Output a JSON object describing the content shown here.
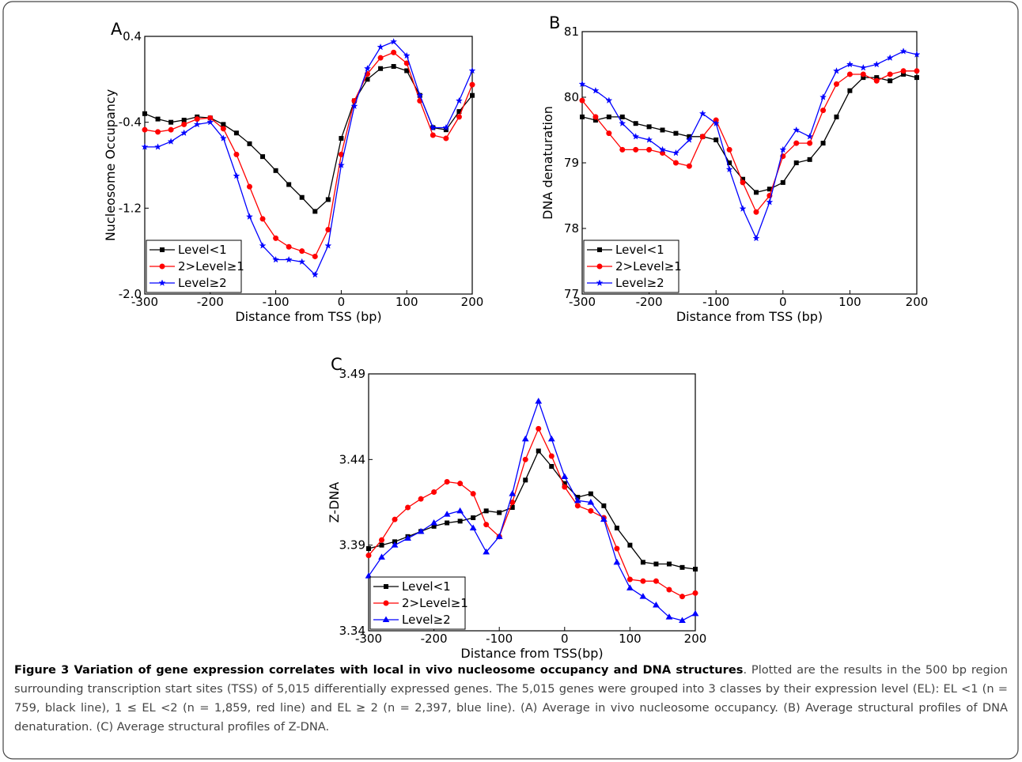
{
  "chart_data": [
    {
      "type": "line",
      "panel_label": "A",
      "xlabel": "Distance from TSS (bp)",
      "ylabel": "Nucleosome Occupancy",
      "x": [
        -300,
        -280,
        -260,
        -240,
        -220,
        -200,
        -180,
        -160,
        -140,
        -120,
        -100,
        -80,
        -60,
        -40,
        -20,
        0,
        20,
        40,
        60,
        80,
        100,
        120,
        140,
        160,
        180,
        200
      ],
      "xlim": [
        -300,
        200
      ],
      "xticks": [
        -300,
        -200,
        -100,
        0,
        100,
        200
      ],
      "ylim": [
        -2,
        0.4
      ],
      "yticks": [
        {
          "value": -2,
          "label": "-2.0"
        },
        -1.2,
        -0.4,
        0.4
      ],
      "legend": "lower left",
      "series": [
        {
          "name": "Level<1",
          "color": "#000000",
          "marker": "square",
          "values": [
            -0.32,
            -0.37,
            -0.4,
            -0.38,
            -0.35,
            -0.36,
            -0.42,
            -0.5,
            -0.6,
            -0.72,
            -0.85,
            -0.98,
            -1.1,
            -1.23,
            -1.12,
            -0.55,
            -0.2,
            0.0,
            0.1,
            0.12,
            0.08,
            -0.15,
            -0.45,
            -0.47,
            -0.3,
            -0.15
          ]
        },
        {
          "name": "2>Level≥1",
          "color": "#ff0000",
          "marker": "circle",
          "values": [
            -0.47,
            -0.49,
            -0.47,
            -0.42,
            -0.37,
            -0.36,
            -0.46,
            -0.7,
            -1.0,
            -1.3,
            -1.48,
            -1.56,
            -1.6,
            -1.65,
            -1.4,
            -0.7,
            -0.2,
            0.05,
            0.2,
            0.25,
            0.15,
            -0.2,
            -0.52,
            -0.55,
            -0.35,
            -0.05
          ]
        },
        {
          "name": "Level≥2",
          "color": "#0000ff",
          "marker": "star",
          "values": [
            -0.63,
            -0.63,
            -0.58,
            -0.5,
            -0.42,
            -0.4,
            -0.55,
            -0.9,
            -1.28,
            -1.55,
            -1.68,
            -1.68,
            -1.7,
            -1.82,
            -1.55,
            -0.8,
            -0.25,
            0.1,
            0.3,
            0.35,
            0.22,
            -0.15,
            -0.45,
            -0.45,
            -0.2,
            0.08
          ]
        }
      ]
    },
    {
      "type": "line",
      "panel_label": "B",
      "xlabel": "Distance from TSS (bp)",
      "ylabel": "DNA denaturation",
      "x": [
        -300,
        -280,
        -260,
        -240,
        -220,
        -200,
        -180,
        -160,
        -140,
        -120,
        -100,
        -80,
        -60,
        -40,
        -20,
        0,
        20,
        40,
        60,
        80,
        100,
        120,
        140,
        160,
        180,
        200
      ],
      "xlim": [
        -300,
        200
      ],
      "xticks": [
        -300,
        -200,
        -100,
        0,
        100,
        200
      ],
      "ylim": [
        77,
        81
      ],
      "yticks": [
        77,
        78,
        79,
        80,
        81
      ],
      "legend": "lower left",
      "series": [
        {
          "name": "Level<1",
          "color": "#000000",
          "marker": "square",
          "values": [
            79.7,
            79.65,
            79.7,
            79.7,
            79.6,
            79.55,
            79.5,
            79.45,
            79.4,
            79.4,
            79.35,
            79.0,
            78.75,
            78.55,
            78.6,
            78.7,
            79.0,
            79.05,
            79.3,
            79.7,
            80.1,
            80.3,
            80.3,
            80.25,
            80.35,
            80.3
          ]
        },
        {
          "name": "2>Level≥1",
          "color": "#ff0000",
          "marker": "circle",
          "values": [
            79.95,
            79.7,
            79.45,
            79.2,
            79.2,
            79.2,
            79.15,
            79.0,
            78.95,
            79.4,
            79.65,
            79.2,
            78.7,
            78.25,
            78.5,
            79.1,
            79.3,
            79.3,
            79.8,
            80.2,
            80.35,
            80.35,
            80.25,
            80.35,
            80.4,
            80.4
          ]
        },
        {
          "name": "Level≥2",
          "color": "#0000ff",
          "marker": "star",
          "values": [
            80.2,
            80.1,
            79.95,
            79.6,
            79.4,
            79.35,
            79.2,
            79.15,
            79.35,
            79.75,
            79.6,
            78.9,
            78.3,
            77.85,
            78.4,
            79.2,
            79.5,
            79.4,
            80.0,
            80.4,
            80.5,
            80.45,
            80.5,
            80.6,
            80.7,
            80.65
          ]
        }
      ]
    },
    {
      "type": "line",
      "panel_label": "C",
      "xlabel": "Distance from TSS(bp)",
      "ylabel": "Z-DNA",
      "x": [
        -300,
        -280,
        -260,
        -240,
        -220,
        -200,
        -180,
        -160,
        -140,
        -120,
        -100,
        -80,
        -60,
        -40,
        -20,
        0,
        20,
        40,
        60,
        80,
        100,
        120,
        140,
        160,
        180,
        200
      ],
      "xlim": [
        -300,
        200
      ],
      "xticks": [
        -300,
        -200,
        -100,
        0,
        100,
        200
      ],
      "ylim": [
        3.34,
        3.49
      ],
      "yticks": [
        3.34,
        3.39,
        3.44,
        3.49
      ],
      "legend": "lower left",
      "series": [
        {
          "name": "Level<1",
          "color": "#000000",
          "marker": "square",
          "values": [
            3.388,
            3.39,
            3.392,
            3.395,
            3.398,
            3.401,
            3.403,
            3.404,
            3.406,
            3.41,
            3.409,
            3.412,
            3.428,
            3.445,
            3.436,
            3.426,
            3.418,
            3.42,
            3.413,
            3.4,
            3.39,
            3.38,
            3.379,
            3.379,
            3.377,
            3.376
          ]
        },
        {
          "name": "2>Level≥1",
          "color": "#ff0000",
          "marker": "circle",
          "values": [
            3.384,
            3.393,
            3.405,
            3.412,
            3.417,
            3.421,
            3.427,
            3.426,
            3.42,
            3.402,
            3.395,
            3.415,
            3.44,
            3.458,
            3.442,
            3.424,
            3.413,
            3.41,
            3.406,
            3.388,
            3.37,
            3.369,
            3.369,
            3.364,
            3.36,
            3.362
          ]
        },
        {
          "name": "Level≥2",
          "color": "#0000ff",
          "marker": "triangle",
          "values": [
            3.372,
            3.383,
            3.39,
            3.394,
            3.398,
            3.403,
            3.408,
            3.41,
            3.4,
            3.386,
            3.395,
            3.42,
            3.452,
            3.474,
            3.452,
            3.43,
            3.416,
            3.415,
            3.405,
            3.38,
            3.365,
            3.36,
            3.355,
            3.348,
            3.346,
            3.35
          ]
        }
      ]
    }
  ],
  "caption": {
    "title": "Figure 3 Variation of gene expression correlates with local in vivo nucleosome occupancy and DNA structures",
    "text": ". Plotted are the results in the 500 bp region surrounding transcription start sites (TSS) of 5,015 differentially expressed genes. The 5,015 genes were grouped into 3 classes by their expression level (EL): EL <1 (n = 759, black line), 1 ≤ EL <2 (n = 1,859, red line) and EL ≥ 2 (n = 2,397, blue line). (A) Average in vivo nucleosome occupancy. (B) Average structural profiles of DNA denaturation. (C) Average structural profiles of Z-DNA."
  }
}
